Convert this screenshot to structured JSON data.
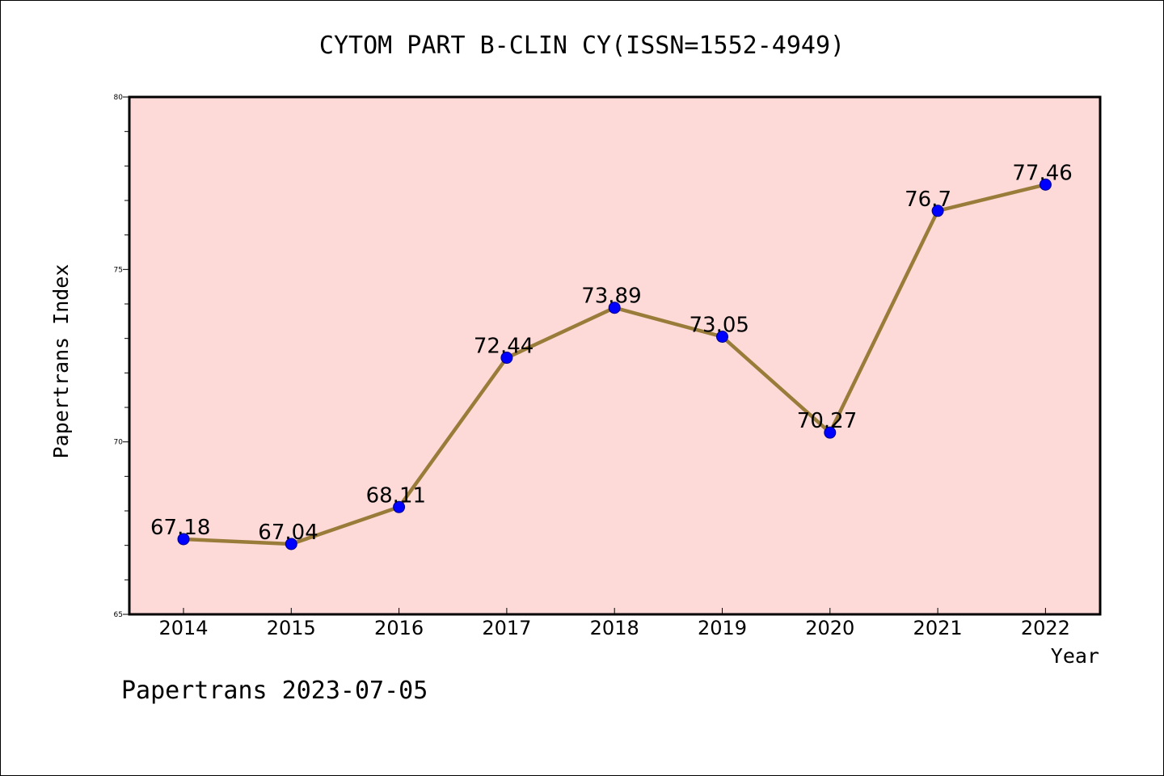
{
  "chart_data": {
    "type": "line",
    "title": "CYTOM PART B-CLIN CY(ISSN=1552-4949)",
    "xlabel": "Year",
    "ylabel": "Papertrans Index",
    "categories": [
      "2014",
      "2015",
      "2016",
      "2017",
      "2018",
      "2019",
      "2020",
      "2021",
      "2022"
    ],
    "values": [
      67.18,
      67.04,
      68.11,
      72.44,
      73.89,
      73.05,
      70.27,
      76.7,
      77.46
    ],
    "value_labels": [
      "67.18",
      "67.04",
      "68.11",
      "72.44",
      "73.89",
      "73.05",
      "70.27",
      "76.7",
      "77.46"
    ],
    "ylim": [
      65,
      80
    ],
    "y_ticks": [
      65,
      70,
      75,
      80
    ],
    "y_minor_step": 1,
    "grid": false,
    "legend": "none",
    "colors": {
      "plot_background": "#fddad7",
      "line": "#9a7c3a",
      "marker": "#0000ff",
      "marker_edge": "#00008b",
      "axis": "#000000"
    }
  },
  "footer": {
    "text": "Papertrans 2023-07-05"
  }
}
